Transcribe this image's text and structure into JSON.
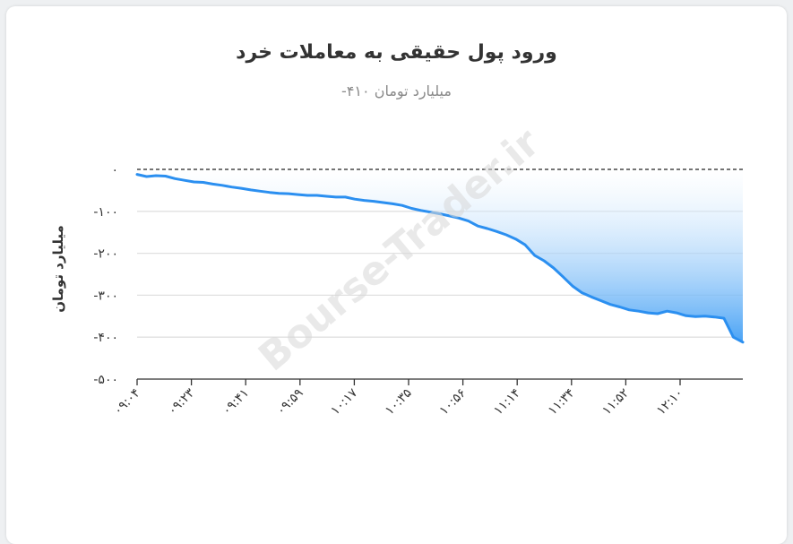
{
  "chart_data": {
    "type": "area",
    "title": "ورود پول حقیقی به معاملات خرد",
    "subtitle": "میلیارد تومان ۴۱۰-",
    "ylabel": "میلیارد تومان",
    "xlabel": "",
    "ylim": [
      -500,
      0
    ],
    "yticks": [
      0,
      -100,
      -200,
      -300,
      -400,
      -500
    ],
    "ytick_labels": [
      "۰",
      "-۱۰۰",
      "-۲۰۰",
      "-۳۰۰",
      "-۴۰۰",
      "-۵۰۰"
    ],
    "xtick_labels": [
      "۰۹:۰۴",
      "۰۹:۲۳",
      "۰۹:۴۱",
      "۰۹:۵۹",
      "۱۰:۱۷",
      "۱۰:۳۵",
      "۱۰:۵۶",
      "۱۱:۱۴",
      "۱۱:۳۴",
      "۱۱:۵۲",
      "۱۲:۱۰"
    ],
    "watermark": "Bourse-Trader.ir",
    "grid": true,
    "zero_line": "dashed",
    "colors": {
      "line": "#2b8ff0",
      "fill_top": "#ffffff",
      "fill_bottom": "#4aa3f5"
    },
    "series": [
      {
        "values": [
          -12,
          -17,
          -15,
          -16,
          -22,
          -26,
          -30,
          -31,
          -35,
          -38,
          -42,
          -45,
          -49,
          -52,
          -55,
          -57,
          -58,
          -60,
          -62,
          -62,
          -64,
          -66,
          -66,
          -71,
          -74,
          -76,
          -79,
          -82,
          -86,
          -93,
          -98,
          -102,
          -106,
          -111,
          -116,
          -123,
          -135,
          -141,
          -148,
          -156,
          -166,
          -180,
          -205,
          -218,
          -235,
          -256,
          -278,
          -294,
          -304,
          -313,
          -322,
          -328,
          -335,
          -338,
          -342,
          -344,
          -338,
          -342,
          -349,
          -351,
          -350,
          -352,
          -355,
          -400,
          -412
        ]
      }
    ]
  }
}
